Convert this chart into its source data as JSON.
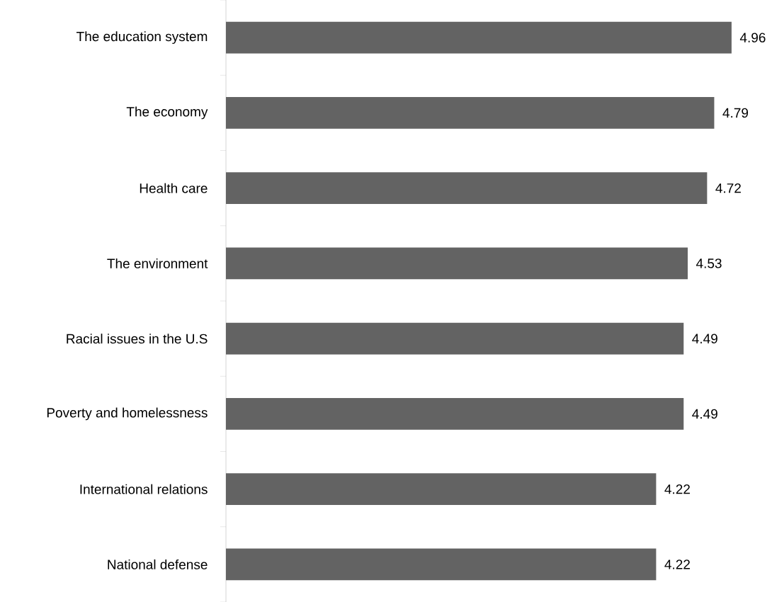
{
  "chart_data": {
    "type": "bar",
    "orientation": "horizontal",
    "categories": [
      "The education system",
      "The economy",
      "Health care",
      "The environment",
      "Racial issues in the U.S",
      "Poverty and homelessness",
      "International relations",
      "National defense"
    ],
    "values": [
      4.96,
      4.79,
      4.72,
      4.53,
      4.49,
      4.49,
      4.22,
      4.22
    ],
    "color": "#636363",
    "data_labels": true,
    "tick_labels": "y"
  }
}
